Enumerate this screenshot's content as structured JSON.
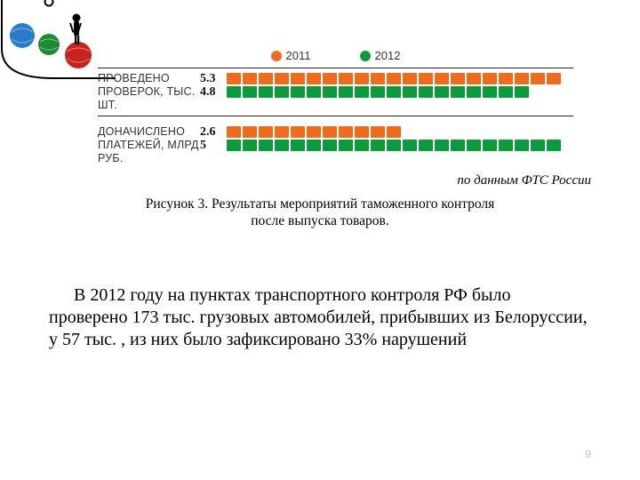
{
  "legend": {
    "items": [
      {
        "label": "2011",
        "color": "#f26a1b"
      },
      {
        "label": "2012",
        "color": "#0a9b3b"
      }
    ]
  },
  "chart": {
    "seg_width": 16,
    "groups": [
      {
        "label_line1": "ПРОВЕДЕНО",
        "label_line2": "ПРОВЕРОК, ТЫС. ШТ.",
        "bars": [
          {
            "value": "5.3",
            "color": "#f26a1b",
            "count": 21
          },
          {
            "value": "4.8",
            "color": "#0a9b3b",
            "count": 19
          }
        ]
      },
      {
        "label_line1": "ДОНАЧИСЛЕНО",
        "label_line2": "ПЛАТЕЖЕЙ, МЛРД РУБ.",
        "bars": [
          {
            "value": "2.6",
            "color": "#f26a1b",
            "count": 11
          },
          {
            "value": "5",
            "color": "#0a9b3b",
            "count": 21
          }
        ]
      }
    ]
  },
  "note_right": "по данным ФТС России",
  "caption_line1": "Рисунок 3. Результаты мероприятий таможенного контроля",
  "caption_line2": "после выпуска товаров.",
  "body": "В 2012 году на пунктах транспортного контроля РФ было проверено 173 тыс. грузовых автомобилей, прибывших из Белоруссии, у 57 тыс. , из них было зафиксировано 33% нарушений",
  "page_number": "9",
  "decor": {
    "globe1": "#2a7cc9",
    "globe2": "#1f8a32",
    "globe3": "#c52220",
    "frame": "#000000"
  }
}
